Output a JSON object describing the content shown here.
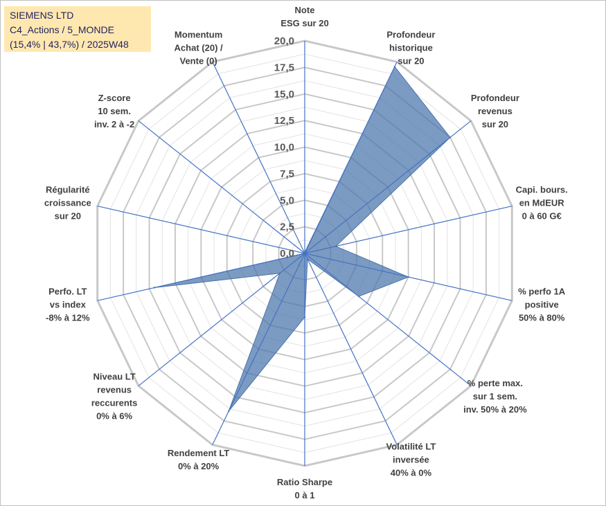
{
  "header": {
    "company": "SIEMENS LTD",
    "category": "C4_Actions / 5_MONDE",
    "info": "(15,4% | 43,7%) / 2025W48"
  },
  "chart_data": {
    "type": "radar",
    "title": "",
    "axes": [
      {
        "label": [
          "Note",
          "ESG sur 20"
        ]
      },
      {
        "label": [
          "Profondeur",
          "historique",
          "sur 20"
        ]
      },
      {
        "label": [
          "Profondeur",
          "revenus",
          "sur 20"
        ]
      },
      {
        "label": [
          "Capi. bours.",
          "en MdEUR",
          "0 à 60 G€"
        ]
      },
      {
        "label": [
          "% perfo 1A",
          "positive",
          "50% à 80%"
        ]
      },
      {
        "label": [
          "% perte max.",
          "sur 1 sem.",
          "inv. 50% à 20%"
        ]
      },
      {
        "label": [
          "Volatilité LT",
          "inversée",
          "40% à 0%"
        ]
      },
      {
        "label": [
          "Ratio Sharpe",
          "0 à 1"
        ]
      },
      {
        "label": [
          "Rendement LT",
          "0% à 20%"
        ]
      },
      {
        "label": [
          "Niveau LT",
          "revenus",
          "reccurents",
          "0% à 6%"
        ]
      },
      {
        "label": [
          "Perfo. LT",
          "vs index",
          "-8% à 12%"
        ]
      },
      {
        "label": [
          "Régularité",
          "croissance",
          "sur 20"
        ]
      },
      {
        "label": [
          "Z-score",
          "10 sem.",
          "inv. 2 à -2"
        ]
      },
      {
        "label": [
          "Momentum",
          "Achat (20) /",
          "Vente (0)"
        ]
      }
    ],
    "values": [
      0.1,
      19.5,
      17.5,
      3.0,
      10.0,
      6.5,
      0.6,
      6.0,
      16.5,
      3.0,
      14.5,
      0.0,
      0.0,
      0.0
    ],
    "rlim": [
      0,
      20
    ],
    "ticks": [
      "0,0",
      "2,5",
      "5,0",
      "7,5",
      "10,0",
      "12,5",
      "15,0",
      "17,5",
      "20,0"
    ],
    "colors": {
      "fill": "#4a74aa",
      "spoke": "#4472c4",
      "ring_major": "#c8c8c8",
      "ring_minor": "#e2e2e2"
    }
  }
}
